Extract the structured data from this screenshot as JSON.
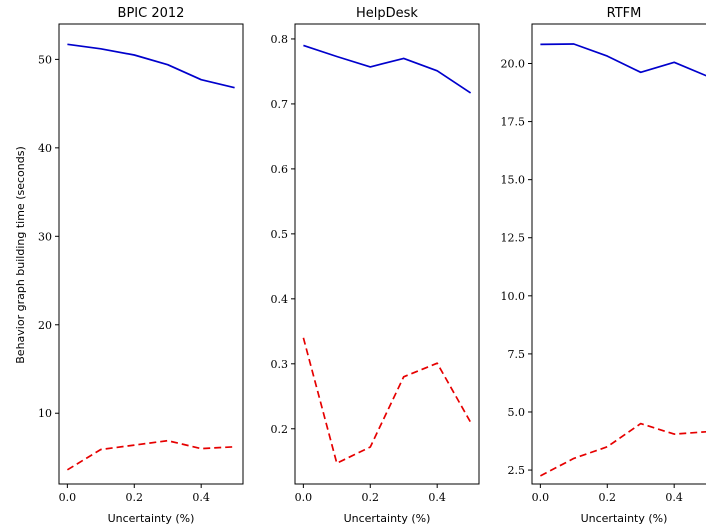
{
  "ylabel": "Behavior graph building time (seconds)",
  "colors": {
    "series_1": "#0000cc",
    "series_2": "#e60000"
  },
  "chart_data": [
    {
      "type": "line",
      "title": "BPIC 2012",
      "xlabel": "Uncertainty (%)",
      "ylabel": "Behavior graph building time (seconds)",
      "xlim": [
        -0.025,
        0.525
      ],
      "ylim": [
        2.0,
        54.0
      ],
      "xticks": [
        0.0,
        0.2,
        0.4
      ],
      "xtick_labels": [
        "0.0",
        "0.2",
        "0.4"
      ],
      "yticks": [
        10,
        20,
        30,
        40,
        50
      ],
      "ytick_labels": [
        "10",
        "20",
        "30",
        "40",
        "50"
      ],
      "x": [
        0.0,
        0.1,
        0.2,
        0.3,
        0.4,
        0.5
      ],
      "series": [
        {
          "style": "solid",
          "values": [
            51.7,
            51.2,
            50.5,
            49.4,
            47.7,
            46.8
          ]
        },
        {
          "style": "dashed",
          "values": [
            3.6,
            5.9,
            6.4,
            6.9,
            6.0,
            6.2
          ]
        }
      ]
    },
    {
      "type": "line",
      "title": "HelpDesk",
      "xlabel": "Uncertainty (%)",
      "ylabel": "",
      "xlim": [
        -0.025,
        0.525
      ],
      "ylim": [
        0.115,
        0.823
      ],
      "xticks": [
        0.0,
        0.2,
        0.4
      ],
      "xtick_labels": [
        "0.0",
        "0.2",
        "0.4"
      ],
      "yticks": [
        0.2,
        0.3,
        0.4,
        0.5,
        0.6,
        0.7,
        0.8
      ],
      "ytick_labels": [
        "0.2",
        "0.3",
        "0.4",
        "0.5",
        "0.6",
        "0.7",
        "0.8"
      ],
      "x": [
        0.0,
        0.1,
        0.2,
        0.3,
        0.4,
        0.5
      ],
      "series": [
        {
          "style": "solid",
          "values": [
            0.79,
            0.773,
            0.757,
            0.77,
            0.751,
            0.717
          ]
        },
        {
          "style": "dashed",
          "values": [
            0.34,
            0.147,
            0.172,
            0.28,
            0.301,
            0.21
          ]
        }
      ]
    },
    {
      "type": "line",
      "title": "RTFM",
      "xlabel": "Uncertainty (%)",
      "ylabel": "",
      "xlim": [
        -0.025,
        0.525
      ],
      "ylim": [
        1.9,
        21.7
      ],
      "xticks": [
        0.0,
        0.2,
        0.4
      ],
      "xtick_labels": [
        "0.0",
        "0.2",
        "0.4"
      ],
      "yticks": [
        2.5,
        5.0,
        7.5,
        10.0,
        12.5,
        15.0,
        17.5,
        20.0
      ],
      "ytick_labels": [
        "2.5",
        "5.0",
        "7.5",
        "10.0",
        "12.5",
        "15.0",
        "17.5",
        "20.0"
      ],
      "x": [
        0.0,
        0.1,
        0.2,
        0.3,
        0.4,
        0.5
      ],
      "series": [
        {
          "style": "solid",
          "values": [
            20.82,
            20.84,
            20.32,
            19.62,
            20.05,
            19.45
          ]
        },
        {
          "style": "dashed",
          "values": [
            2.25,
            3.0,
            3.5,
            4.5,
            4.05,
            4.15
          ]
        }
      ]
    }
  ]
}
